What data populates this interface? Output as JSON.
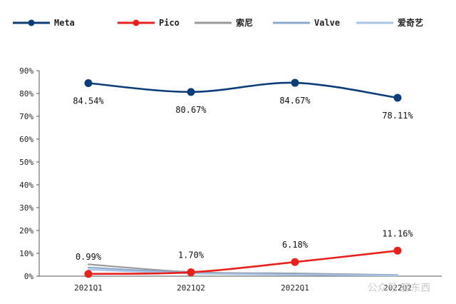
{
  "chart_data": {
    "type": "line",
    "categories": [
      "2021Q1",
      "2021Q2",
      "2022Q1",
      "2022Q2"
    ],
    "ylim": [
      0,
      90
    ],
    "y_ticks": [
      "0%",
      "10%",
      "20%",
      "30%",
      "40%",
      "50%",
      "60%",
      "70%",
      "80%",
      "90%"
    ],
    "y_tick_values": [
      0,
      10,
      20,
      30,
      40,
      50,
      60,
      70,
      80,
      90
    ],
    "grid": false,
    "legend_position": "top",
    "series": [
      {
        "name": "Meta",
        "color": "#0b3d7a",
        "marker": true,
        "values": [
          84.54,
          80.67,
          84.67,
          78.11
        ],
        "labels": [
          "84.54%",
          "80.67%",
          "84.67%",
          "78.11%"
        ]
      },
      {
        "name": "Pico",
        "color": "#e8211c",
        "marker": true,
        "values": [
          0.99,
          1.7,
          6.18,
          11.16
        ],
        "labels": [
          "0.99%",
          "1.70%",
          "6.18%",
          "11.16%"
        ]
      },
      {
        "name": "索尼",
        "color": "#9a9a9a",
        "marker": false,
        "values": [
          5.2,
          1.8,
          1.2,
          0.5
        ]
      },
      {
        "name": "Valve",
        "color": "#8ea9cf",
        "marker": false,
        "values": [
          3.8,
          1.5,
          0.9,
          0.4
        ]
      },
      {
        "name": "爱奇艺",
        "color": "#a9c3e6",
        "marker": false,
        "values": [
          2.9,
          1.2,
          0.6,
          0.3
        ]
      }
    ]
  },
  "watermark": "公众号 智东西"
}
